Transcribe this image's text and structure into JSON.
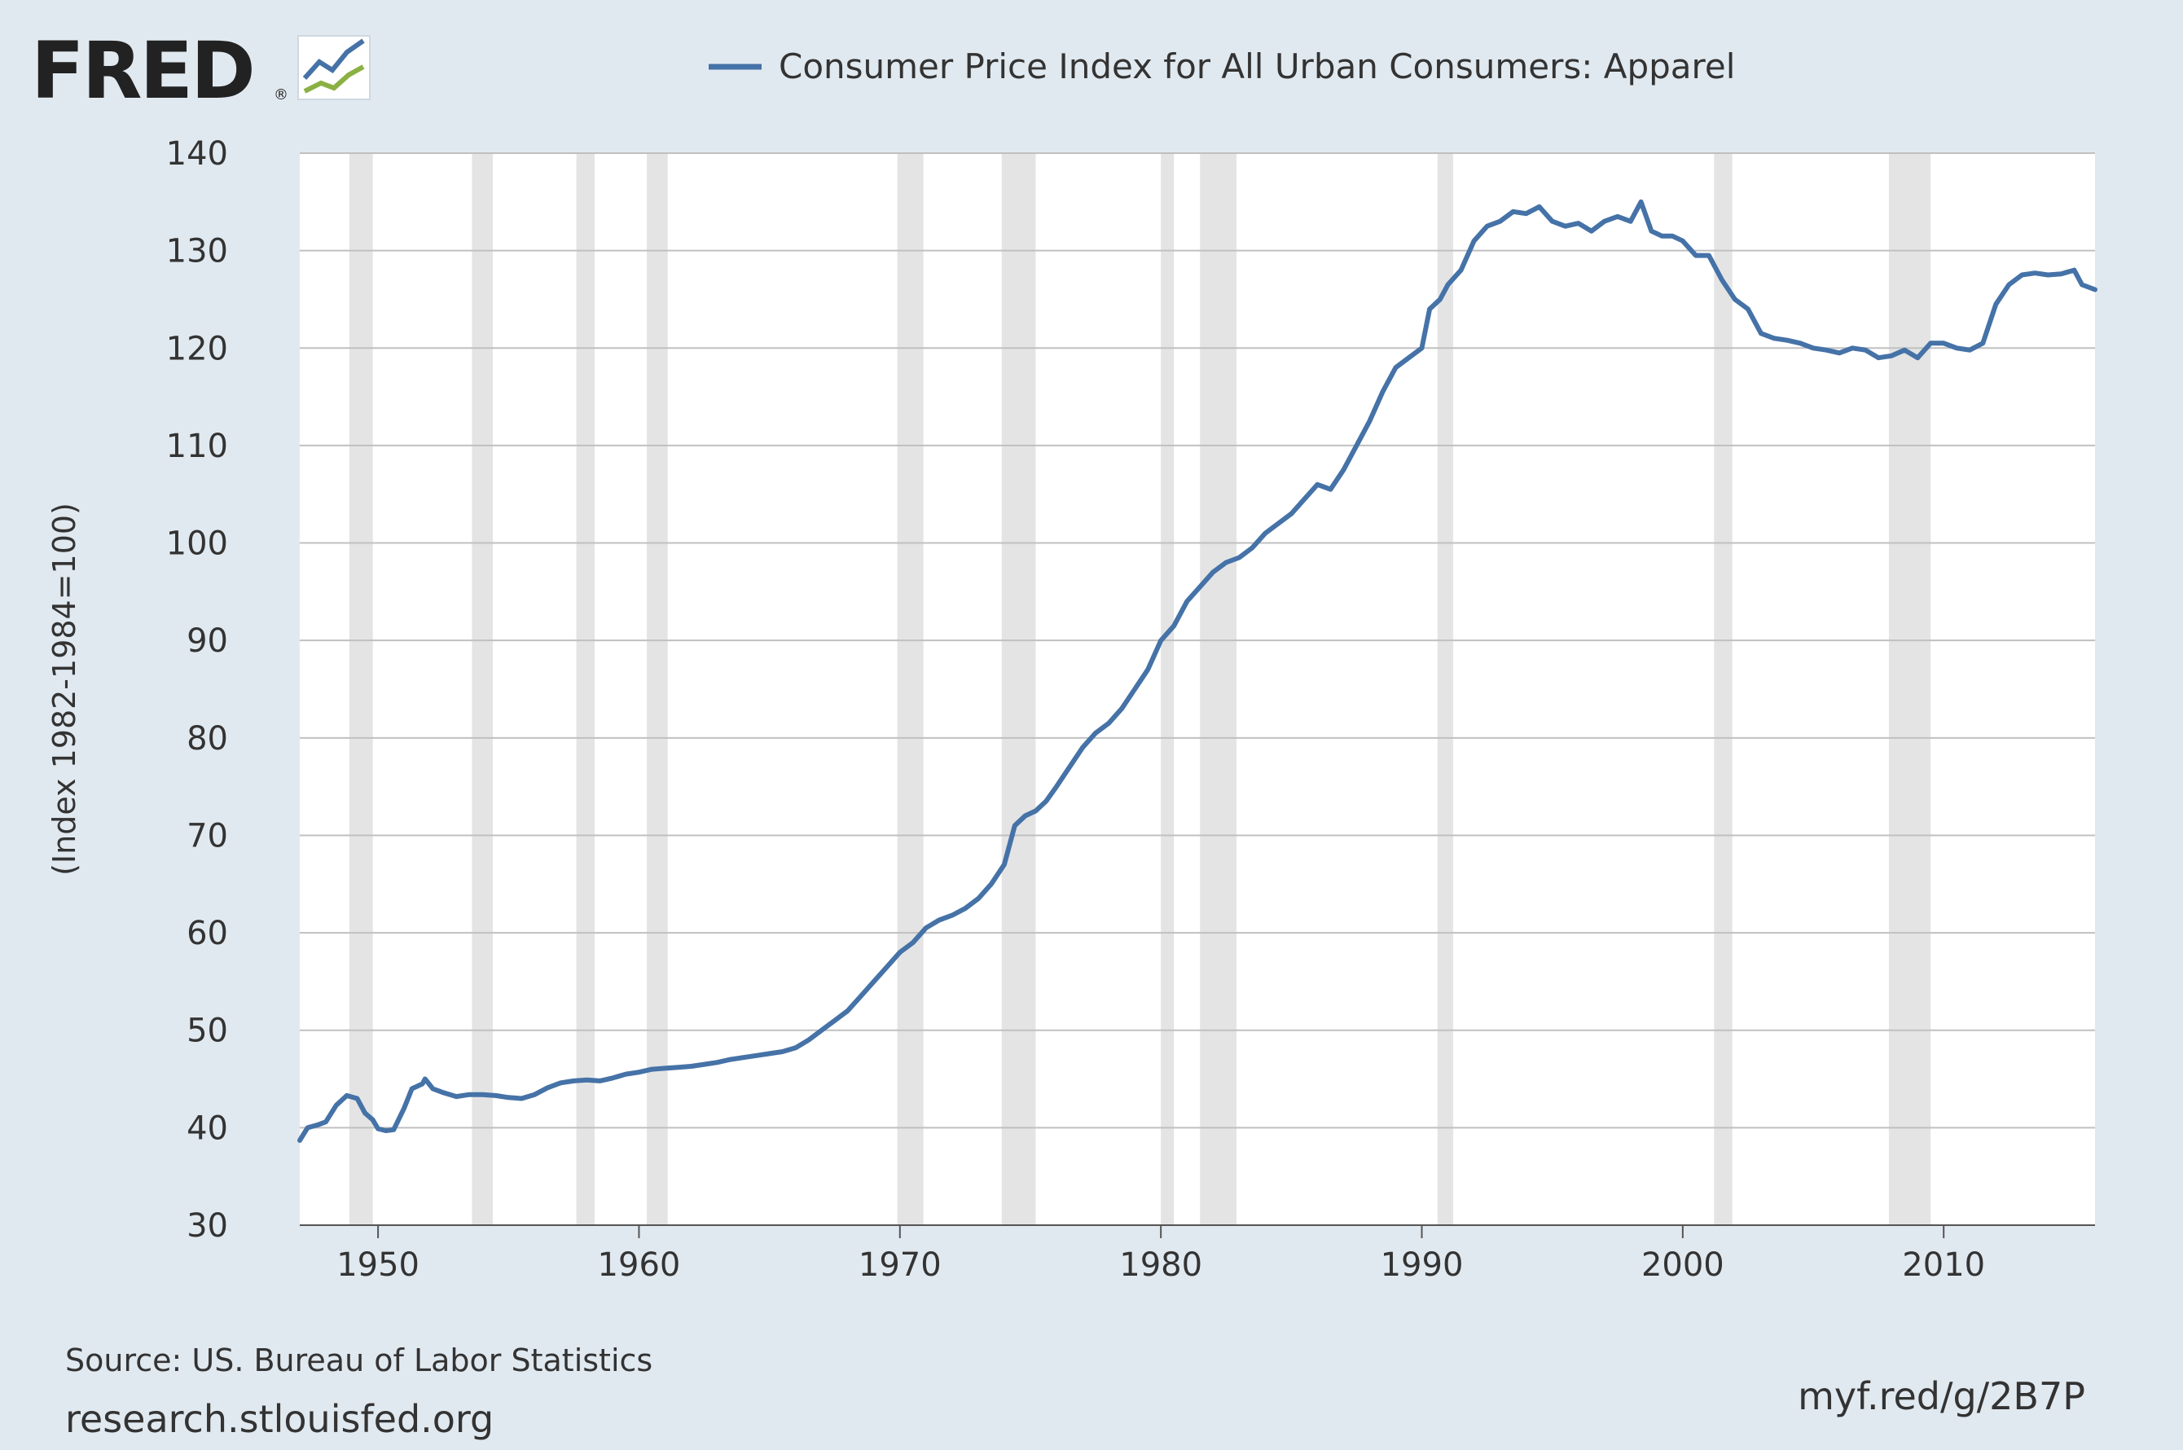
{
  "header": {
    "logo_text": "FRED",
    "logo_reg": "®"
  },
  "footer": {
    "source": "Source: US. Bureau of Labor Statistics",
    "site": "research.stlouisfed.org",
    "short_url": "myf.red/g/2B7P"
  },
  "colors": {
    "background": "#e1e9f0",
    "plot_background": "#ffffff",
    "series": "#4572a7",
    "recession": "#e4e4e4",
    "grid": "#c0c0c0"
  },
  "chart_data": {
    "type": "line",
    "title": "",
    "xlabel": "",
    "ylabel": "(Index 1982-1984=100)",
    "xlim": [
      1947.0,
      2015.8
    ],
    "ylim": [
      30,
      140
    ],
    "yticks": [
      30,
      40,
      50,
      60,
      70,
      80,
      90,
      100,
      110,
      120,
      130,
      140
    ],
    "xticks": [
      1950,
      1960,
      1970,
      1980,
      1990,
      2000,
      2010
    ],
    "grid": "horizontal",
    "legend": "top",
    "recessions": [
      [
        1948.9,
        1949.8
      ],
      [
        1953.6,
        1954.4
      ],
      [
        1957.6,
        1958.3
      ],
      [
        1960.3,
        1961.1
      ],
      [
        1969.9,
        1970.9
      ],
      [
        1973.9,
        1975.2
      ],
      [
        1980.0,
        1980.5
      ],
      [
        1981.5,
        1982.9
      ],
      [
        1990.6,
        1991.2
      ],
      [
        2001.2,
        2001.9
      ],
      [
        2007.9,
        2009.5
      ]
    ],
    "series": [
      {
        "name": "Consumer Price Index for All Urban Consumers: Apparel",
        "points": [
          [
            1947.0,
            38.7
          ],
          [
            1947.3,
            40.0
          ],
          [
            1947.7,
            40.3
          ],
          [
            1948.0,
            40.6
          ],
          [
            1948.4,
            42.3
          ],
          [
            1948.8,
            43.3
          ],
          [
            1949.2,
            43.0
          ],
          [
            1949.5,
            41.5
          ],
          [
            1949.8,
            40.8
          ],
          [
            1950.0,
            39.9
          ],
          [
            1950.3,
            39.7
          ],
          [
            1950.6,
            39.8
          ],
          [
            1951.0,
            42.0
          ],
          [
            1951.3,
            44.0
          ],
          [
            1951.7,
            44.5
          ],
          [
            1951.8,
            45.0
          ],
          [
            1952.1,
            44.0
          ],
          [
            1952.5,
            43.6
          ],
          [
            1953.0,
            43.2
          ],
          [
            1953.5,
            43.4
          ],
          [
            1954.0,
            43.4
          ],
          [
            1954.5,
            43.3
          ],
          [
            1955.0,
            43.1
          ],
          [
            1955.5,
            43.0
          ],
          [
            1956.0,
            43.4
          ],
          [
            1956.5,
            44.1
          ],
          [
            1957.0,
            44.6
          ],
          [
            1957.5,
            44.8
          ],
          [
            1958.0,
            44.9
          ],
          [
            1958.5,
            44.8
          ],
          [
            1959.0,
            45.1
          ],
          [
            1959.5,
            45.5
          ],
          [
            1960.0,
            45.7
          ],
          [
            1960.5,
            46.0
          ],
          [
            1961.0,
            46.1
          ],
          [
            1961.5,
            46.2
          ],
          [
            1962.0,
            46.3
          ],
          [
            1962.5,
            46.5
          ],
          [
            1963.0,
            46.7
          ],
          [
            1963.5,
            47.0
          ],
          [
            1964.0,
            47.2
          ],
          [
            1964.5,
            47.4
          ],
          [
            1965.0,
            47.6
          ],
          [
            1965.5,
            47.8
          ],
          [
            1966.0,
            48.2
          ],
          [
            1966.5,
            49.0
          ],
          [
            1967.0,
            50.0
          ],
          [
            1967.5,
            51.0
          ],
          [
            1968.0,
            52.0
          ],
          [
            1968.5,
            53.5
          ],
          [
            1969.0,
            55.0
          ],
          [
            1969.5,
            56.5
          ],
          [
            1970.0,
            58.0
          ],
          [
            1970.5,
            59.0
          ],
          [
            1971.0,
            60.5
          ],
          [
            1971.5,
            61.3
          ],
          [
            1972.0,
            61.8
          ],
          [
            1972.5,
            62.5
          ],
          [
            1973.0,
            63.5
          ],
          [
            1973.5,
            65.0
          ],
          [
            1974.0,
            67.0
          ],
          [
            1974.4,
            71.0
          ],
          [
            1974.8,
            72.0
          ],
          [
            1975.2,
            72.5
          ],
          [
            1975.6,
            73.5
          ],
          [
            1976.0,
            75.0
          ],
          [
            1976.5,
            77.0
          ],
          [
            1977.0,
            79.0
          ],
          [
            1977.5,
            80.5
          ],
          [
            1978.0,
            81.5
          ],
          [
            1978.5,
            83.0
          ],
          [
            1979.0,
            85.0
          ],
          [
            1979.5,
            87.0
          ],
          [
            1980.0,
            90.0
          ],
          [
            1980.5,
            91.5
          ],
          [
            1981.0,
            94.0
          ],
          [
            1981.5,
            95.5
          ],
          [
            1982.0,
            97.0
          ],
          [
            1982.5,
            98.0
          ],
          [
            1983.0,
            98.5
          ],
          [
            1983.5,
            99.5
          ],
          [
            1984.0,
            101.0
          ],
          [
            1984.5,
            102.0
          ],
          [
            1985.0,
            103.0
          ],
          [
            1985.5,
            104.5
          ],
          [
            1986.0,
            106.0
          ],
          [
            1986.5,
            105.5
          ],
          [
            1987.0,
            107.5
          ],
          [
            1987.5,
            110.0
          ],
          [
            1988.0,
            112.5
          ],
          [
            1988.5,
            115.5
          ],
          [
            1989.0,
            118.0
          ],
          [
            1989.5,
            119.0
          ],
          [
            1990.0,
            120.0
          ],
          [
            1990.3,
            124.0
          ],
          [
            1990.7,
            125.0
          ],
          [
            1991.0,
            126.5
          ],
          [
            1991.5,
            128.0
          ],
          [
            1992.0,
            131.0
          ],
          [
            1992.5,
            132.5
          ],
          [
            1993.0,
            133.0
          ],
          [
            1993.5,
            134.0
          ],
          [
            1994.0,
            133.8
          ],
          [
            1994.5,
            134.5
          ],
          [
            1995.0,
            133.0
          ],
          [
            1995.5,
            132.5
          ],
          [
            1996.0,
            132.8
          ],
          [
            1996.5,
            132.0
          ],
          [
            1997.0,
            133.0
          ],
          [
            1997.5,
            133.5
          ],
          [
            1998.0,
            133.0
          ],
          [
            1998.4,
            135.0
          ],
          [
            1998.8,
            132.0
          ],
          [
            1999.2,
            131.5
          ],
          [
            1999.6,
            131.5
          ],
          [
            2000.0,
            131.0
          ],
          [
            2000.5,
            129.5
          ],
          [
            2001.0,
            129.5
          ],
          [
            2001.5,
            127.0
          ],
          [
            2002.0,
            125.0
          ],
          [
            2002.5,
            124.0
          ],
          [
            2003.0,
            121.5
          ],
          [
            2003.5,
            121.0
          ],
          [
            2004.0,
            120.8
          ],
          [
            2004.5,
            120.5
          ],
          [
            2005.0,
            120.0
          ],
          [
            2005.5,
            119.8
          ],
          [
            2006.0,
            119.5
          ],
          [
            2006.5,
            120.0
          ],
          [
            2007.0,
            119.8
          ],
          [
            2007.5,
            119.0
          ],
          [
            2008.0,
            119.2
          ],
          [
            2008.5,
            119.8
          ],
          [
            2009.0,
            119.0
          ],
          [
            2009.5,
            120.5
          ],
          [
            2010.0,
            120.5
          ],
          [
            2010.5,
            120.0
          ],
          [
            2011.0,
            119.8
          ],
          [
            2011.5,
            120.5
          ],
          [
            2012.0,
            124.5
          ],
          [
            2012.5,
            126.5
          ],
          [
            2013.0,
            127.5
          ],
          [
            2013.5,
            127.7
          ],
          [
            2014.0,
            127.5
          ],
          [
            2014.5,
            127.6
          ],
          [
            2015.0,
            128.0
          ],
          [
            2015.3,
            126.5
          ],
          [
            2015.8,
            126.0
          ]
        ]
      }
    ]
  }
}
